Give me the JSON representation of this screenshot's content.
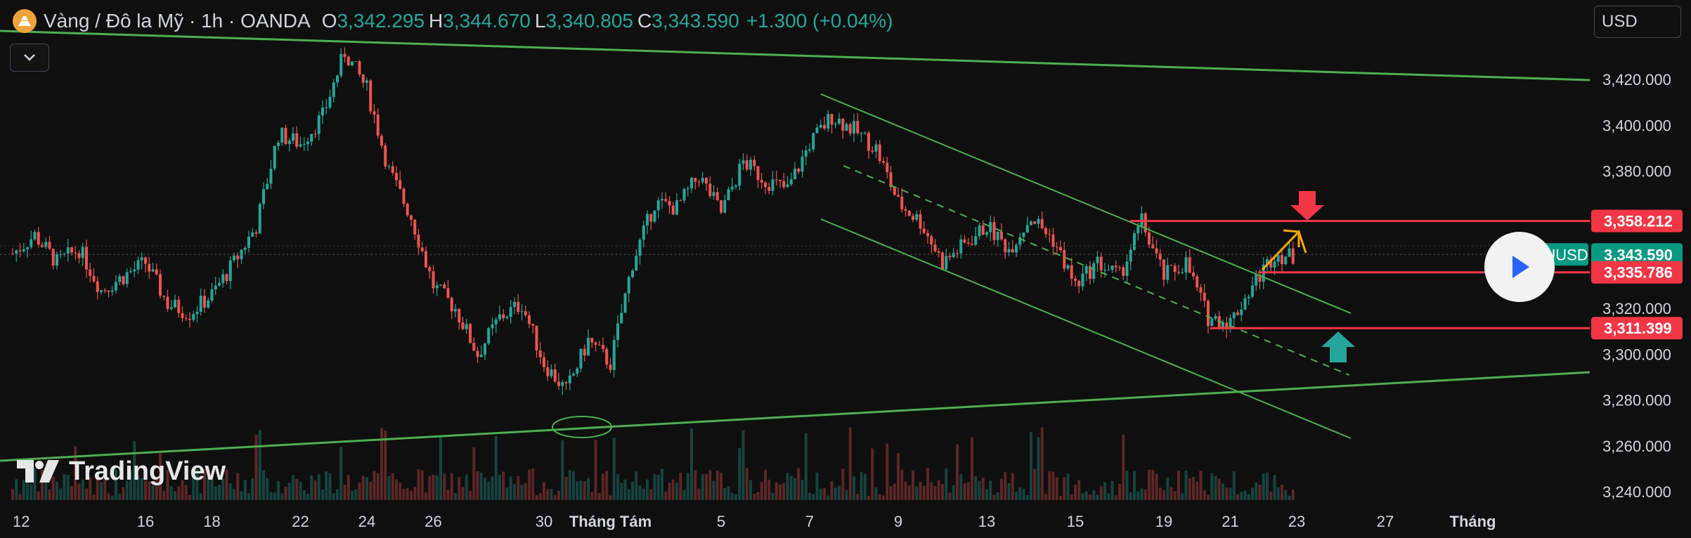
{
  "header": {
    "symbol_title": "Vàng / Đô la Mỹ · 1h · OANDA",
    "open_key": "O",
    "open": "3,342.295",
    "high_key": "H",
    "high": "3,344.670",
    "low_key": "L",
    "low": "3,340.805",
    "close_key": "C",
    "close": "3,343.590",
    "change": "+1.300 (+0.04%)"
  },
  "currency_button": "USD",
  "brand": "TradingView",
  "colors": {
    "up": "#26a69a",
    "down": "#ef5350",
    "trend": "#4caf50",
    "level": "#f23645",
    "arrow": "#f7a600"
  },
  "chart_data": {
    "type": "candlestick",
    "symbol": "XAUUSD",
    "interval": "1h",
    "ylim": [
      3240,
      3440
    ],
    "y_ticks": [
      "3,420.000",
      "3,400.000",
      "3,380.000",
      "3,360.000",
      "3,340.000",
      "3,320.000",
      "3,300.000",
      "3,280.000",
      "3,260.000",
      "3,240.000"
    ],
    "y_tick_values": [
      3420,
      3400,
      3380,
      3360,
      3340,
      3320,
      3300,
      3280,
      3260,
      3240
    ],
    "x_ticks": [
      "12",
      "16",
      "18",
      "22",
      "24",
      "26",
      "30",
      "Tháng Tám",
      "5",
      "7",
      "9",
      "13",
      "15",
      "19",
      "21",
      "23",
      "27",
      "Tháng"
    ],
    "x_tick_index": [
      0,
      6,
      9,
      13,
      16,
      19,
      24,
      27,
      32,
      36,
      40,
      44,
      48,
      52,
      55,
      58,
      62,
      67
    ],
    "close_path": [
      [
        0,
        3344
      ],
      [
        1,
        3352
      ],
      [
        2,
        3340
      ],
      [
        3,
        3346
      ],
      [
        4,
        3328
      ],
      [
        5,
        3334
      ],
      [
        6,
        3340
      ],
      [
        7,
        3322
      ],
      [
        8,
        3318
      ],
      [
        9,
        3326
      ],
      [
        10,
        3340
      ],
      [
        11,
        3356
      ],
      [
        12,
        3396
      ],
      [
        13,
        3392
      ],
      [
        14,
        3404
      ],
      [
        15,
        3432
      ],
      [
        16,
        3416
      ],
      [
        17,
        3380
      ],
      [
        18,
        3360
      ],
      [
        19,
        3330
      ],
      [
        20,
        3320
      ],
      [
        21,
        3300
      ],
      [
        22,
        3316
      ],
      [
        23,
        3322
      ],
      [
        24,
        3296
      ],
      [
        25,
        3284
      ],
      [
        26,
        3306
      ],
      [
        27,
        3296
      ],
      [
        28,
        3340
      ],
      [
        29,
        3366
      ],
      [
        30,
        3364
      ],
      [
        31,
        3378
      ],
      [
        32,
        3362
      ],
      [
        33,
        3384
      ],
      [
        34,
        3376
      ],
      [
        35,
        3372
      ],
      [
        36,
        3392
      ],
      [
        37,
        3404
      ],
      [
        38,
        3398
      ],
      [
        39,
        3390
      ],
      [
        40,
        3366
      ],
      [
        41,
        3358
      ],
      [
        42,
        3340
      ],
      [
        43,
        3348
      ],
      [
        44,
        3356
      ],
      [
        45,
        3346
      ],
      [
        46,
        3360
      ],
      [
        47,
        3350
      ],
      [
        48,
        3330
      ],
      [
        49,
        3340
      ],
      [
        50,
        3334
      ],
      [
        51,
        3358
      ],
      [
        52,
        3334
      ],
      [
        53,
        3340
      ],
      [
        54,
        3316
      ],
      [
        55,
        3314
      ],
      [
        56,
        3330
      ],
      [
        57,
        3344
      ],
      [
        58,
        3342
      ]
    ],
    "price_labels": [
      {
        "text": "3,358.212",
        "value": 3358.212,
        "type": "level"
      },
      {
        "text": "3,343.590",
        "value": 3343.59,
        "type": "current"
      },
      {
        "text": "3,335.786",
        "value": 3335.786,
        "type": "level"
      },
      {
        "text": "3,311.399",
        "value": 3311.399,
        "type": "level"
      }
    ],
    "symbol_tag": "XAUUSD",
    "horizontal_levels": [
      3358.212,
      3335.786,
      3311.399
    ],
    "grid": false
  }
}
